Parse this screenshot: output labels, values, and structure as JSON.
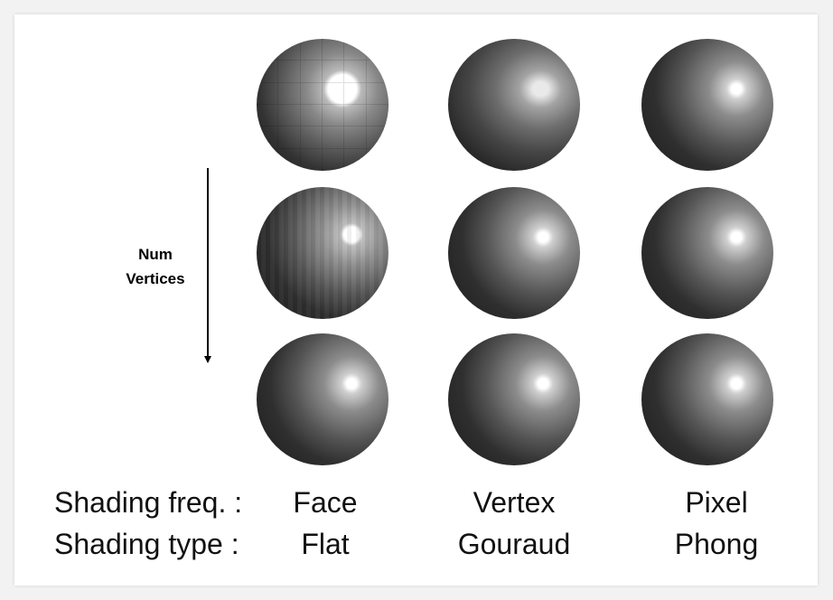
{
  "axis": {
    "label_line1": "Num",
    "label_line2": "Vertices"
  },
  "rows": {
    "freq_label": "Shading freq. :",
    "type_label": "Shading type :"
  },
  "columns": [
    {
      "freq": "Face",
      "type": "Flat"
    },
    {
      "freq": "Vertex",
      "type": "Gouraud"
    },
    {
      "freq": "Pixel",
      "type": "Phong"
    }
  ]
}
